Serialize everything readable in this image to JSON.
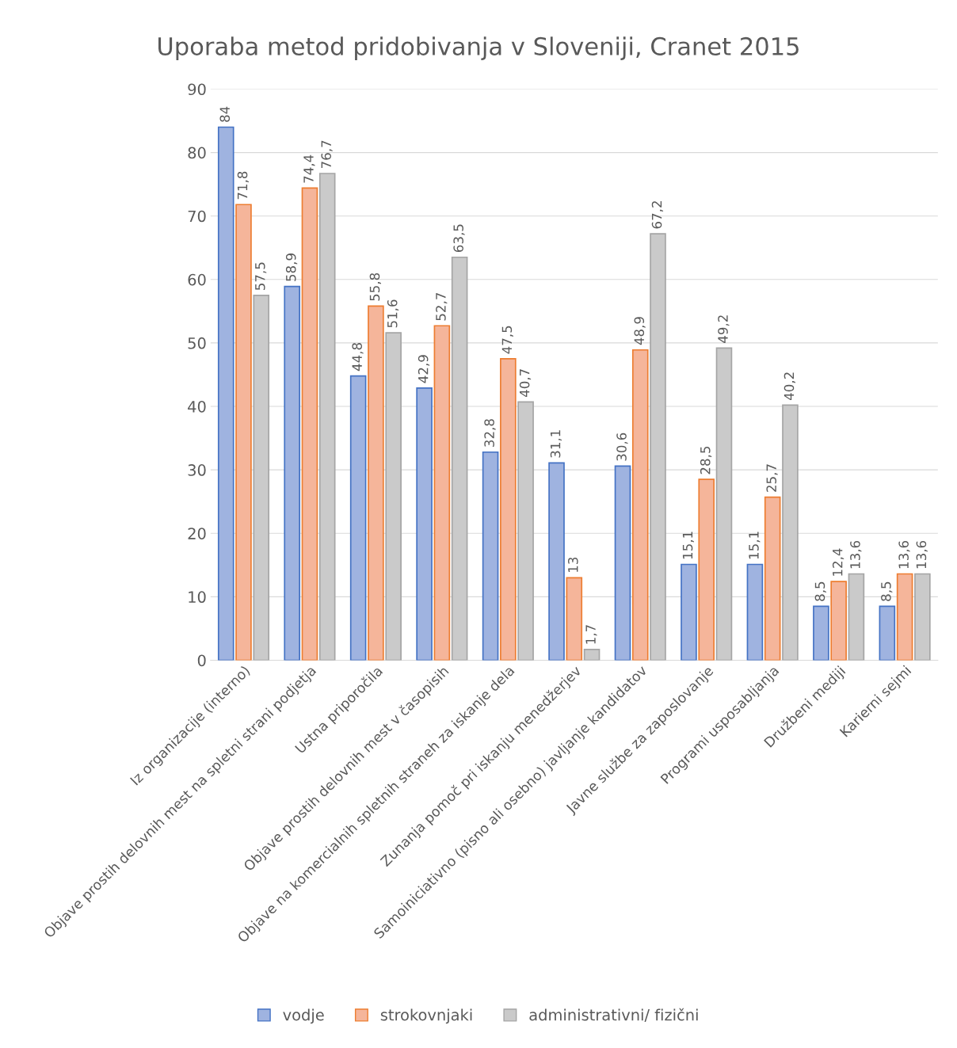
{
  "chart_data": {
    "type": "bar",
    "title": "Uporaba metod pridobivanja v Sloveniji, Cranet 2015",
    "categories": [
      "Iz organizacije (interno)",
      "Objave prostih delovnih mest na spletni strani podjetja",
      "Ustna priporočila",
      "Objave prostih delovnih mest v časopisih",
      "Objave na komercialnih spletnih straneh za iskanje dela",
      "Zunanja pomoč pri iskanju menedžerjev",
      "Samoiniciativno (pisno ali osebno) javljanje kandidatov",
      "Javne službe za zaposlovanje",
      "Programi usposabljanja",
      "Družbeni mediji",
      "Karierni sejmi"
    ],
    "series": [
      {
        "name": "vodje",
        "color": "#9fb3e0",
        "values": [
          84,
          58.9,
          44.8,
          42.9,
          32.8,
          31.1,
          30.6,
          15.1,
          15.1,
          8.5,
          8.5
        ],
        "value_labels": [
          "84",
          "58,9",
          "44,8",
          "42,9",
          "32,8",
          "31,1",
          "30,6",
          "15,1",
          "15,1",
          "8,5",
          "8,5"
        ]
      },
      {
        "name": "strokovnjaki",
        "color": "#f5b59a",
        "values": [
          71.8,
          74.4,
          55.8,
          52.7,
          47.5,
          13,
          48.9,
          28.5,
          25.7,
          12.4,
          13.6
        ],
        "value_labels": [
          "71,8",
          "74,4",
          "55,8",
          "52,7",
          "47,5",
          "13",
          "48,9",
          "28,5",
          "25,7",
          "12,4",
          "13,6"
        ]
      },
      {
        "name": "administrativni/ fizični",
        "color": "#cacaca",
        "values": [
          57.5,
          76.7,
          51.6,
          63.5,
          40.7,
          1.7,
          67.2,
          49.2,
          40.2,
          13.6,
          13.6
        ],
        "value_labels": [
          "57,5",
          "76,7",
          "51,6",
          "63,5",
          "40,7",
          "1,7",
          "67,2",
          "49,2",
          "40,2",
          "13,6",
          "13,6"
        ]
      }
    ],
    "ylim": [
      0,
      90
    ],
    "yticks": [
      0,
      10,
      20,
      30,
      40,
      50,
      60,
      70,
      80,
      90
    ],
    "grid": "y",
    "legend": "bottom"
  }
}
